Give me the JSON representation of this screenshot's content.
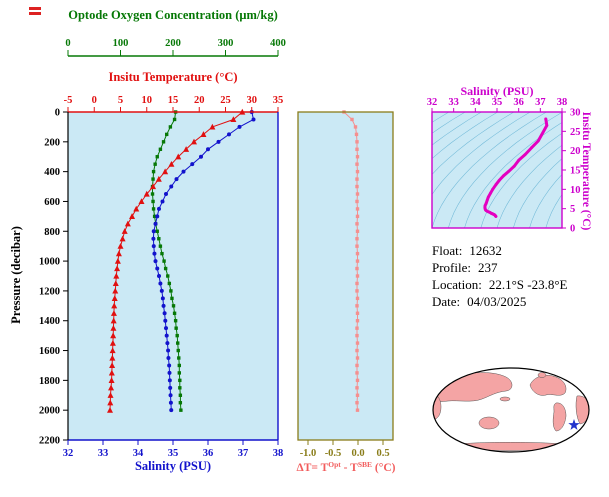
{
  "info": {
    "float_label": "Float:",
    "float_value": "12632",
    "profile_label": "Profile:",
    "profile_value": "237",
    "location_label": "Location:",
    "location_value": "22.1°S  -23.8°E",
    "date_label": "Date:",
    "date_value": "04/03/2025"
  },
  "colors": {
    "plot_background": "#cbe9f5",
    "contour": "#5fb0d2",
    "oxygen": "#067806",
    "temperature": "#e11010",
    "salinity": "#1212cc",
    "pressure_axis": "#000000",
    "delta_series": "#f58f8f",
    "delta_axis": "#8a7d1a",
    "ts_curve": "#e400c0",
    "ts_axis": "#cc00cc",
    "map_land": "#f4a4a4",
    "map_outline": "#000000",
    "map_star": "#2233cc"
  },
  "chart_data": [
    {
      "type": "line",
      "name": "profile-plot",
      "ylabel": "Pressure (decibar)",
      "ylim": [
        0,
        2200
      ],
      "y_ticks": [
        0,
        200,
        400,
        600,
        800,
        1000,
        1200,
        1400,
        1600,
        1800,
        2000,
        2200
      ],
      "pressure": [
        0,
        50,
        100,
        150,
        200,
        250,
        300,
        350,
        400,
        450,
        500,
        550,
        600,
        650,
        700,
        750,
        800,
        850,
        900,
        950,
        1000,
        1050,
        1100,
        1150,
        1200,
        1250,
        1300,
        1350,
        1400,
        1450,
        1500,
        1550,
        1600,
        1650,
        1700,
        1750,
        1800,
        1850,
        1900,
        1950,
        2000
      ],
      "series": [
        {
          "name": "Optode Oxygen Concentration (μm/kg)",
          "axis_position": "top-outer",
          "marker": "square",
          "xlim": [
            0,
            400
          ],
          "ticks": [
            0,
            100,
            200,
            300,
            400
          ],
          "values": [
            205,
            203,
            195,
            188,
            182,
            176,
            170,
            166,
            163,
            162,
            161,
            161,
            162,
            163,
            165,
            167,
            170,
            173,
            176,
            179,
            183,
            186,
            190,
            193,
            196,
            198,
            201,
            203,
            205,
            206,
            208,
            209,
            210,
            211,
            212,
            212,
            213,
            213,
            214,
            214,
            215
          ]
        },
        {
          "name": "Insitu Temperature (°C)",
          "axis_position": "top",
          "marker": "triangle",
          "xlim": [
            -5,
            35
          ],
          "ticks": [
            -5,
            0,
            5,
            10,
            15,
            20,
            25,
            30,
            35
          ],
          "values": [
            28.2,
            26.5,
            22.5,
            20.8,
            19.0,
            17.5,
            16.0,
            14.7,
            13.5,
            12.3,
            11.2,
            10.0,
            9.0,
            8.0,
            7.2,
            6.4,
            5.8,
            5.4,
            5.0,
            4.7,
            4.5,
            4.35,
            4.2,
            4.1,
            4.0,
            3.9,
            3.8,
            3.75,
            3.7,
            3.65,
            3.6,
            3.55,
            3.5,
            3.45,
            3.4,
            3.35,
            3.3,
            3.2,
            3.1,
            3.05,
            3.0
          ]
        },
        {
          "name": "Salinity (PSU)",
          "axis_position": "bottom",
          "marker": "circle",
          "xlim": [
            32,
            38
          ],
          "ticks": [
            32,
            33,
            34,
            35,
            36,
            37,
            38
          ],
          "values": [
            37.25,
            37.3,
            36.9,
            36.6,
            36.3,
            36.0,
            35.8,
            35.55,
            35.3,
            35.1,
            34.95,
            34.8,
            34.7,
            34.6,
            34.55,
            34.5,
            34.45,
            34.44,
            34.45,
            34.47,
            34.5,
            34.55,
            34.6,
            34.64,
            34.68,
            34.71,
            34.73,
            34.76,
            34.78,
            34.8,
            34.82,
            34.84,
            34.86,
            34.87,
            34.89,
            34.9,
            34.91,
            34.92,
            34.93,
            34.94,
            34.95
          ]
        }
      ]
    },
    {
      "type": "line",
      "name": "temperature-difference-plot",
      "xlabel_parts": [
        "ΔT= T",
        "Opt",
        " - T",
        "SBE",
        " (°C)"
      ],
      "xlim": [
        -1.2,
        0.7
      ],
      "x_ticks": [
        "-1.0",
        "-0.5",
        "0.0",
        "0.5"
      ],
      "ylim": [
        0,
        2200
      ],
      "pressure": [
        0,
        50,
        100,
        150,
        200,
        250,
        300,
        350,
        400,
        450,
        500,
        550,
        600,
        650,
        700,
        750,
        800,
        850,
        900,
        950,
        1000,
        1050,
        1100,
        1150,
        1200,
        1250,
        1300,
        1350,
        1400,
        1450,
        1500,
        1550,
        1600,
        1650,
        1700,
        1750,
        1800,
        1850,
        1900,
        1950,
        2000
      ],
      "values": [
        -0.28,
        -0.12,
        -0.05,
        -0.03,
        -0.02,
        -0.02,
        -0.01,
        -0.02,
        -0.01,
        -0.02,
        -0.02,
        -0.01,
        -0.02,
        -0.01,
        -0.01,
        -0.02,
        -0.01,
        -0.02,
        -0.02,
        -0.01,
        -0.01,
        -0.02,
        -0.01,
        -0.02,
        -0.02,
        -0.01,
        -0.02,
        -0.01,
        -0.01,
        -0.02,
        -0.02,
        -0.01,
        -0.02,
        -0.01,
        -0.02,
        -0.02,
        -0.01,
        -0.02,
        -0.01,
        -0.02,
        -0.01
      ]
    },
    {
      "type": "line",
      "name": "ts-diagram",
      "xlabel": "Salinity (PSU)",
      "ylabel": "Insitu Temperature (°C)",
      "xlim": [
        32,
        38
      ],
      "ylim": [
        0,
        30
      ],
      "x_ticks": [
        32,
        33,
        34,
        35,
        36,
        37,
        38
      ],
      "y_ticks": [
        0,
        5,
        10,
        15,
        20,
        25,
        30
      ],
      "grid": "density-contours",
      "salinity": [
        37.25,
        37.3,
        36.9,
        36.6,
        36.3,
        36.0,
        35.8,
        35.55,
        35.3,
        35.1,
        34.95,
        34.8,
        34.7,
        34.6,
        34.55,
        34.5,
        34.45,
        34.44,
        34.45,
        34.47,
        34.5,
        34.55,
        34.6,
        34.64,
        34.68,
        34.71,
        34.73,
        34.76,
        34.78,
        34.8,
        34.82,
        34.84,
        34.86,
        34.87,
        34.89,
        34.9,
        34.91,
        34.92,
        34.93,
        34.94,
        34.95
      ],
      "temperature": [
        28.2,
        26.5,
        22.5,
        20.8,
        19.0,
        17.5,
        16.0,
        14.7,
        13.5,
        12.3,
        11.2,
        10.0,
        9.0,
        8.0,
        7.2,
        6.4,
        5.8,
        5.4,
        5.0,
        4.7,
        4.5,
        4.35,
        4.2,
        4.1,
        4.0,
        3.9,
        3.8,
        3.75,
        3.7,
        3.65,
        3.6,
        3.55,
        3.5,
        3.45,
        3.4,
        3.35,
        3.3,
        3.2,
        3.1,
        3.05,
        3.0
      ]
    }
  ]
}
